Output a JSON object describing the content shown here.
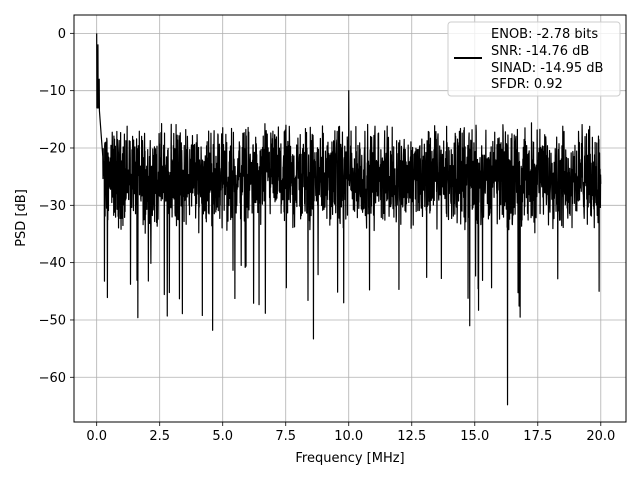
{
  "chart_data": {
    "type": "line",
    "title": "",
    "xlabel": "Frequency [MHz]",
    "ylabel": "PSD [dB]",
    "xlim": [
      -0.9,
      21.0
    ],
    "ylim": [
      -67.8,
      3.2
    ],
    "xticks": [
      0.0,
      2.5,
      5.0,
      7.5,
      10.0,
      12.5,
      15.0,
      17.5,
      20.0
    ],
    "xtick_labels": [
      "0.0",
      "2.5",
      "5.0",
      "7.5",
      "10.0",
      "12.5",
      "15.0",
      "17.5",
      "20.0"
    ],
    "yticks": [
      0,
      -10,
      -20,
      -30,
      -40,
      -50,
      -60
    ],
    "ytick_labels": [
      "0",
      "−10",
      "−20",
      "−30",
      "−40",
      "−50",
      "−60"
    ],
    "grid": true,
    "legend": {
      "placement": "top-right",
      "lines": [
        "ENOB: -2.78 bits",
        "SNR: -14.76 dB",
        "SINAD: -14.95 dB",
        "SFDR: 0.92"
      ]
    },
    "series": [
      {
        "color": "#000000",
        "x_range": [
          0.0,
          20.0
        ],
        "noise_floor_db": -25,
        "noise_spread_db": [
          -35,
          -15
        ],
        "peaks": [
          {
            "x": 0.0,
            "y": 0.0
          },
          {
            "x": 0.05,
            "y": -2.0
          },
          {
            "x": 0.1,
            "y": -8.0
          },
          {
            "x": 10.0,
            "y": -10.0
          },
          {
            "x": 16.3,
            "y": -64.8
          },
          {
            "x": 4.6,
            "y": -51.8
          },
          {
            "x": 8.6,
            "y": -53.3
          },
          {
            "x": 14.8,
            "y": -51.0
          },
          {
            "x": 16.8,
            "y": -49.5
          },
          {
            "x": 3.4,
            "y": -48.9
          },
          {
            "x": 9.8,
            "y": -47.0
          }
        ]
      }
    ]
  }
}
